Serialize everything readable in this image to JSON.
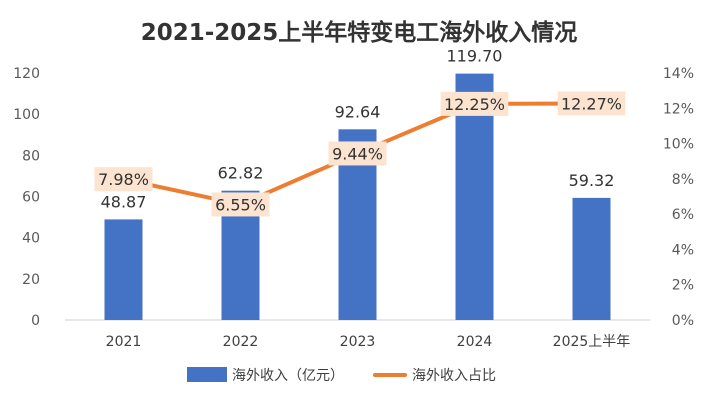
{
  "chart_data": {
    "type": "bar+line",
    "title": "2021-2025上半年特变电工海外收入情况",
    "categories": [
      "2021",
      "2022",
      "2023",
      "2024",
      "2025上半年"
    ],
    "series": [
      {
        "name": "海外收入（亿元）",
        "type": "bar",
        "axis": "left",
        "values": [
          48.87,
          62.82,
          92.64,
          119.7,
          59.32
        ],
        "labels": [
          "48.87",
          "62.82",
          "92.64",
          "119.70",
          "59.32"
        ],
        "color": "#4472C4"
      },
      {
        "name": "海外收入占比",
        "type": "line",
        "axis": "right",
        "values": [
          7.98,
          6.55,
          9.44,
          12.25,
          12.27
        ],
        "labels": [
          "7.98%",
          "6.55%",
          "9.44%",
          "12.25%",
          "12.27%"
        ],
        "color": "#ED7D31",
        "label_bg": "#FCE4D0"
      }
    ],
    "y_left": {
      "min": 0,
      "max": 120,
      "ticks": [
        "0",
        "20",
        "40",
        "60",
        "80",
        "100",
        "120"
      ]
    },
    "y_right": {
      "min": 0,
      "max": 14,
      "ticks": [
        "0%",
        "2%",
        "4%",
        "6%",
        "8%",
        "10%",
        "12%",
        "14%"
      ]
    },
    "grid": false,
    "legend_position": "bottom"
  }
}
